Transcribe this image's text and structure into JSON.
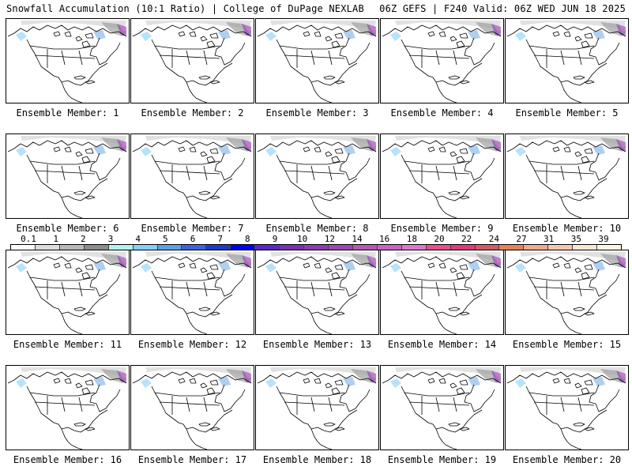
{
  "header": {
    "left": "Snowfall Accumulation (10:1 Ratio) | College of DuPage NEXLAB",
    "right": "06Z GEFS | F240 Valid: 06Z WED JUN 18 2025"
  },
  "members": [
    {
      "label": "Ensemble Member: 1"
    },
    {
      "label": "Ensemble Member: 2"
    },
    {
      "label": "Ensemble Member: 3"
    },
    {
      "label": "Ensemble Member: 4"
    },
    {
      "label": "Ensemble Member: 5"
    },
    {
      "label": "Ensemble Member: 6"
    },
    {
      "label": "Ensemble Member: 7"
    },
    {
      "label": "Ensemble Member: 8"
    },
    {
      "label": "Ensemble Member: 9"
    },
    {
      "label": "Ensemble Member: 10"
    },
    {
      "label": "Ensemble Member: 11"
    },
    {
      "label": "Ensemble Member: 12"
    },
    {
      "label": "Ensemble Member: 13"
    },
    {
      "label": "Ensemble Member: 14"
    },
    {
      "label": "Ensemble Member: 15"
    },
    {
      "label": "Ensemble Member: 16"
    },
    {
      "label": "Ensemble Member: 17"
    },
    {
      "label": "Ensemble Member: 18"
    },
    {
      "label": "Ensemble Member: 19"
    },
    {
      "label": "Ensemble Member: 20"
    }
  ],
  "legend": {
    "ticks": [
      "0.1",
      "1",
      "2",
      "3",
      "4",
      "5",
      "6",
      "7",
      "8",
      "9",
      "10",
      "12",
      "14",
      "16",
      "18",
      "20",
      "22",
      "24",
      "27",
      "31",
      "35",
      "39"
    ],
    "colors": [
      "#ffffff",
      "#dcdcdc",
      "#b8b8b8",
      "#8c8c8c",
      "#b4f0f0",
      "#87cefa",
      "#5f9fe6",
      "#3c64dc",
      "#1e3cc8",
      "#0000ff",
      "#5a28c8",
      "#7832b4",
      "#8c3cb4",
      "#a046b4",
      "#b45ab4",
      "#c864c8",
      "#dc78c8",
      "#e6508c",
      "#dc3c78",
      "#d25a64",
      "#e6825a",
      "#f0aa8c",
      "#f5c8aa",
      "#fae6d2",
      "#fff5e6"
    ]
  }
}
